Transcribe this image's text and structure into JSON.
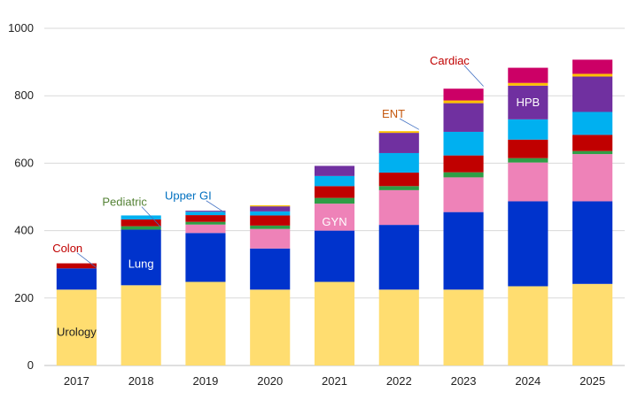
{
  "chart_data": {
    "type": "bar",
    "stacked": true,
    "title": "",
    "xlabel": "",
    "ylabel": "",
    "ylim": [
      0,
      1000
    ],
    "yticks": [
      0,
      200,
      400,
      600,
      800,
      1000
    ],
    "grid": true,
    "categories": [
      "2017",
      "2018",
      "2019",
      "2020",
      "2021",
      "2022",
      "2023",
      "2024",
      "2025"
    ],
    "series": [
      {
        "name": "Urology",
        "color": "#FFDD70",
        "values": [
          225,
          238,
          248,
          225,
          248,
          225,
          225,
          235,
          242
        ]
      },
      {
        "name": "Lung",
        "color": "#0033CC",
        "values": [
          63,
          165,
          145,
          122,
          152,
          192,
          230,
          252,
          245
        ]
      },
      {
        "name": "GYN",
        "color": "#EE82B8",
        "values": [
          0,
          0,
          25,
          58,
          80,
          103,
          103,
          115,
          140
        ]
      },
      {
        "name": "Pediatric",
        "color": "#2E9E46",
        "values": [
          0,
          10,
          8,
          10,
          17,
          12,
          15,
          13,
          9
        ]
      },
      {
        "name": "Colon",
        "color": "#C00000",
        "values": [
          15,
          20,
          20,
          30,
          35,
          40,
          50,
          55,
          48
        ]
      },
      {
        "name": "Upper GI",
        "color": "#00B0F0",
        "values": [
          0,
          12,
          10,
          12,
          30,
          58,
          70,
          60,
          68
        ]
      },
      {
        "name": "HPB",
        "color": "#7030A0",
        "values": [
          0,
          0,
          3,
          15,
          30,
          60,
          85,
          100,
          105
        ]
      },
      {
        "name": "ENT",
        "color": "#FFC000",
        "values": [
          0,
          0,
          0,
          3,
          0,
          5,
          8,
          8,
          8
        ]
      },
      {
        "name": "Cardiac",
        "color": "#CC0066",
        "values": [
          0,
          0,
          0,
          0,
          0,
          0,
          35,
          45,
          42
        ]
      }
    ],
    "annotations": [
      {
        "text": "Urology",
        "color": "#222222",
        "category": "2017",
        "value": 98,
        "leader": false
      },
      {
        "text": "Lung",
        "color": "#ffffff",
        "category": "2018",
        "value": 300,
        "leader": false
      },
      {
        "text": "GYN",
        "color": "#ffffff",
        "category": "2021",
        "value": 425,
        "leader": false
      },
      {
        "text": "HPB",
        "color": "#ffffff",
        "category": "2024",
        "value": 780,
        "leader": false
      },
      {
        "text": "Colon",
        "color": "#C00000",
        "category": "2017",
        "value": 347,
        "leader": true,
        "leader_to": 290
      },
      {
        "text": "Pediatric",
        "color": "#548235",
        "category": "2018",
        "value": 484,
        "leader": true,
        "leader_to": 410
      },
      {
        "text": "Upper GI",
        "color": "#0070C0",
        "category": "2019",
        "value": 502,
        "leader": true,
        "leader_to": 452
      },
      {
        "text": "ENT",
        "color": "#C55A11",
        "category": "2022",
        "value": 745,
        "leader": true,
        "leader_to": 700
      },
      {
        "text": "Cardiac",
        "color": "#C00000",
        "category": "2023",
        "value": 903,
        "leader": true,
        "leader_to": 828
      }
    ]
  }
}
